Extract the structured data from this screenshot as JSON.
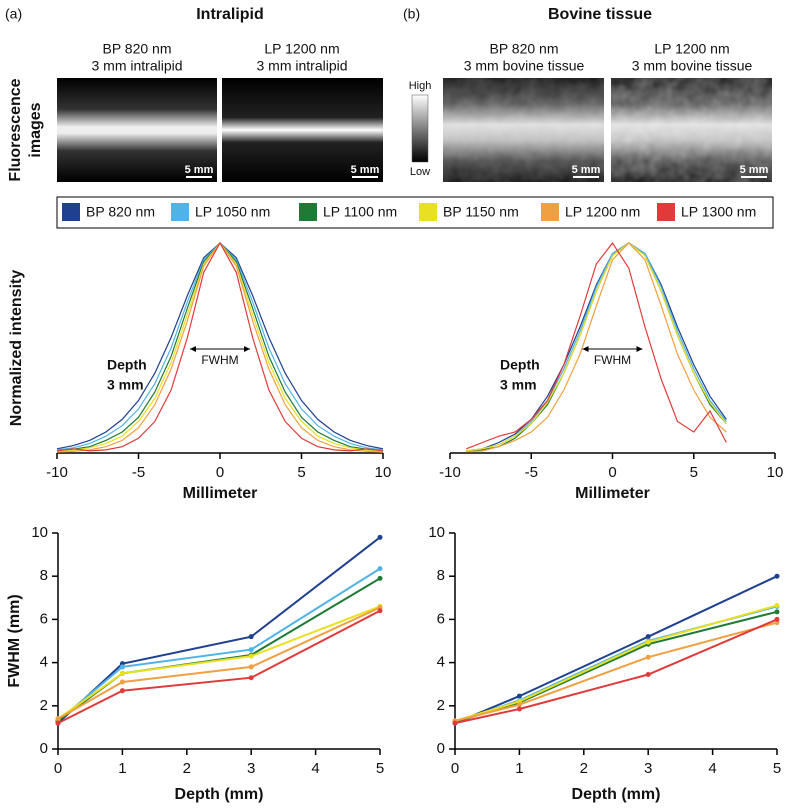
{
  "header": {
    "panel_a": "(a)",
    "title_a": "Intralipid",
    "panel_b": "(b)",
    "title_b": "Bovine tissue"
  },
  "images": {
    "row_label": [
      "Fluorescence",
      "images"
    ],
    "panels": [
      {
        "label": [
          "BP 820 nm",
          "3 mm intralipid"
        ],
        "scale_bar": "5 mm"
      },
      {
        "label": [
          "LP 1200 nm",
          "3 mm intralipid"
        ],
        "scale_bar": "5 mm"
      },
      {
        "label": [
          "BP 820 nm",
          "3 mm bovine tissue"
        ],
        "scale_bar": "5 mm"
      },
      {
        "label": [
          "LP 1200 nm",
          "3 mm bovine tissue"
        ],
        "scale_bar": "5 mm"
      }
    ],
    "colorbar": {
      "high": "High",
      "low": "Low"
    }
  },
  "chart_data": [
    {
      "type": "line",
      "xlabel": "Millimeter",
      "ylabel": "Normalized intensity",
      "annotations": {
        "depth": "Depth",
        "depth_value": "3 mm",
        "fwhm": "FWHM"
      },
      "xlim": [
        -10,
        10
      ],
      "xticks": [
        -10,
        -5,
        0,
        5,
        10
      ],
      "ylim": [
        0,
        1
      ],
      "x": [
        -10,
        -9,
        -8,
        -7,
        -6,
        -5,
        -4,
        -3,
        -2,
        -1,
        0,
        1,
        2,
        3,
        4,
        5,
        6,
        7,
        8,
        9,
        10
      ],
      "series": [
        {
          "name": "BP 820 nm",
          "color": "#1f3f8f",
          "values": [
            0.02,
            0.035,
            0.06,
            0.1,
            0.16,
            0.25,
            0.38,
            0.55,
            0.75,
            0.93,
            1,
            0.93,
            0.75,
            0.55,
            0.38,
            0.25,
            0.16,
            0.1,
            0.06,
            0.035,
            0.02
          ]
        },
        {
          "name": "LP 1050 nm",
          "color": "#4fb3e8",
          "values": [
            0.015,
            0.025,
            0.045,
            0.08,
            0.13,
            0.21,
            0.33,
            0.5,
            0.72,
            0.92,
            1,
            0.92,
            0.72,
            0.5,
            0.33,
            0.21,
            0.13,
            0.08,
            0.045,
            0.025,
            0.015
          ]
        },
        {
          "name": "LP 1100 nm",
          "color": "#1e7a35",
          "values": [
            0.01,
            0.018,
            0.03,
            0.06,
            0.1,
            0.17,
            0.29,
            0.46,
            0.69,
            0.91,
            1,
            0.91,
            0.69,
            0.46,
            0.29,
            0.17,
            0.1,
            0.06,
            0.03,
            0.018,
            0.01
          ]
        },
        {
          "name": "BP 1150 nm",
          "color": "#e8e020",
          "values": [
            0.008,
            0.013,
            0.025,
            0.045,
            0.08,
            0.15,
            0.26,
            0.43,
            0.66,
            0.9,
            1,
            0.9,
            0.66,
            0.43,
            0.26,
            0.15,
            0.08,
            0.045,
            0.025,
            0.013,
            0.008
          ]
        },
        {
          "name": "LP 1200 nm",
          "color": "#f0a040",
          "values": [
            0.004,
            0.008,
            0.015,
            0.03,
            0.06,
            0.12,
            0.23,
            0.4,
            0.63,
            0.89,
            1,
            0.89,
            0.63,
            0.4,
            0.23,
            0.12,
            0.06,
            0.03,
            0.015,
            0.008,
            0.004
          ]
        },
        {
          "name": "LP 1300 nm",
          "color": "#e03a3a",
          "values": [
            0.01,
            0.02,
            0.01,
            0.015,
            0.03,
            0.07,
            0.15,
            0.3,
            0.55,
            0.86,
            1,
            0.86,
            0.55,
            0.3,
            0.15,
            0.07,
            0.03,
            0.015,
            0.01,
            0.02,
            0.01
          ]
        }
      ]
    },
    {
      "type": "line",
      "xlabel": "Millimeter",
      "annotations": {
        "depth": "Depth",
        "depth_value": "3 mm",
        "fwhm": "FWHM"
      },
      "xlim": [
        -10,
        10
      ],
      "xticks": [
        -10,
        -5,
        0,
        5,
        10
      ],
      "ylim": [
        0,
        1
      ],
      "x": [
        -10,
        -9,
        -8,
        -7,
        -6,
        -5,
        -4,
        -3,
        -2,
        -1,
        0,
        1,
        2,
        3,
        4,
        5,
        6,
        7,
        8,
        9,
        10
      ],
      "series": [
        {
          "name": "BP 820 nm",
          "color": "#1f3f8f",
          "values": [
            null,
            0.01,
            0.02,
            0.05,
            0.09,
            0.16,
            0.27,
            0.42,
            0.6,
            0.8,
            0.95,
            1,
            0.95,
            0.8,
            0.6,
            0.42,
            0.27,
            0.16,
            null,
            null,
            null
          ]
        },
        {
          "name": "LP 1050 nm",
          "color": "#4fb3e8",
          "values": [
            null,
            0.01,
            0.02,
            0.04,
            0.08,
            0.15,
            0.25,
            0.4,
            0.58,
            0.79,
            0.95,
            1,
            0.95,
            0.79,
            0.58,
            0.4,
            0.25,
            0.15,
            null,
            null,
            null
          ]
        },
        {
          "name": "LP 1100 nm",
          "color": "#1e7a35",
          "values": [
            null,
            0.005,
            0.015,
            0.03,
            0.07,
            0.14,
            0.23,
            0.38,
            0.56,
            0.77,
            0.94,
            1,
            0.94,
            0.77,
            0.56,
            0.38,
            0.23,
            0.14,
            null,
            null,
            null
          ]
        },
        {
          "name": "BP 1150 nm",
          "color": "#e8e020",
          "values": [
            null,
            0.01,
            0.02,
            0.04,
            0.08,
            0.14,
            0.24,
            0.38,
            0.56,
            0.77,
            0.94,
            1,
            0.94,
            0.77,
            0.56,
            0.38,
            0.24,
            0.14,
            null,
            null,
            null
          ]
        },
        {
          "name": "LP 1200 nm",
          "color": "#f0a040",
          "values": [
            null,
            0.005,
            0.01,
            0.03,
            0.06,
            0.1,
            0.17,
            0.3,
            0.47,
            0.7,
            0.92,
            1,
            0.92,
            0.7,
            0.47,
            0.3,
            0.17,
            0.1,
            null,
            null,
            null
          ]
        },
        {
          "name": "LP 1300 nm",
          "color": "#e03a3a",
          "values": [
            null,
            0.02,
            0.05,
            0.08,
            0.1,
            0.16,
            0.25,
            0.42,
            0.65,
            0.9,
            1,
            0.88,
            0.6,
            0.35,
            0.15,
            0.1,
            0.2,
            0.05,
            null,
            null,
            null
          ]
        }
      ]
    },
    {
      "type": "line",
      "xlabel": "Depth  (mm)",
      "ylabel": "FWHM (mm)",
      "markers": true,
      "xlim": [
        0,
        5
      ],
      "xticks": [
        0,
        1,
        2,
        3,
        4,
        5
      ],
      "ylim": [
        0,
        10
      ],
      "yticks": [
        0,
        2,
        4,
        6,
        8,
        10
      ],
      "x": [
        0,
        1,
        3,
        5
      ],
      "series": [
        {
          "name": "BP 820 nm",
          "color": "#1f3f8f",
          "values": [
            1.2,
            3.95,
            5.2,
            9.8
          ]
        },
        {
          "name": "LP 1050 nm",
          "color": "#4fb3e8",
          "values": [
            1.3,
            3.8,
            4.6,
            8.35
          ]
        },
        {
          "name": "LP 1100 nm",
          "color": "#1e7a35",
          "values": [
            1.3,
            3.5,
            4.35,
            7.9
          ]
        },
        {
          "name": "BP 1150 nm",
          "color": "#e8e020",
          "values": [
            1.4,
            3.5,
            4.3,
            6.6
          ]
        },
        {
          "name": "LP 1200 nm",
          "color": "#f0a040",
          "values": [
            1.4,
            3.1,
            3.8,
            6.55
          ]
        },
        {
          "name": "LP 1300 nm",
          "color": "#e03a3a",
          "values": [
            1.2,
            2.7,
            3.3,
            6.4
          ]
        }
      ]
    },
    {
      "type": "line",
      "xlabel": "Depth  (mm)",
      "markers": true,
      "xlim": [
        0,
        5
      ],
      "xticks": [
        0,
        1,
        2,
        3,
        4,
        5
      ],
      "ylim": [
        0,
        10
      ],
      "yticks": [
        0,
        2,
        4,
        6,
        8,
        10
      ],
      "x": [
        0,
        1,
        3,
        5
      ],
      "series": [
        {
          "name": "BP 820 nm",
          "color": "#1f3f8f",
          "values": [
            1.2,
            2.45,
            5.2,
            8.0
          ]
        },
        {
          "name": "LP 1050 nm",
          "color": "#4fb3e8",
          "values": [
            1.25,
            2.25,
            5.0,
            6.6
          ]
        },
        {
          "name": "LP 1100 nm",
          "color": "#1e7a35",
          "values": [
            1.25,
            2.15,
            4.85,
            6.35
          ]
        },
        {
          "name": "BP 1150 nm",
          "color": "#e8e020",
          "values": [
            1.3,
            2.2,
            4.95,
            6.65
          ]
        },
        {
          "name": "LP 1200 nm",
          "color": "#f0a040",
          "values": [
            1.3,
            2.05,
            4.25,
            5.85
          ]
        },
        {
          "name": "LP 1300 nm",
          "color": "#e03a3a",
          "values": [
            1.2,
            1.85,
            3.45,
            6.0
          ]
        }
      ]
    }
  ]
}
